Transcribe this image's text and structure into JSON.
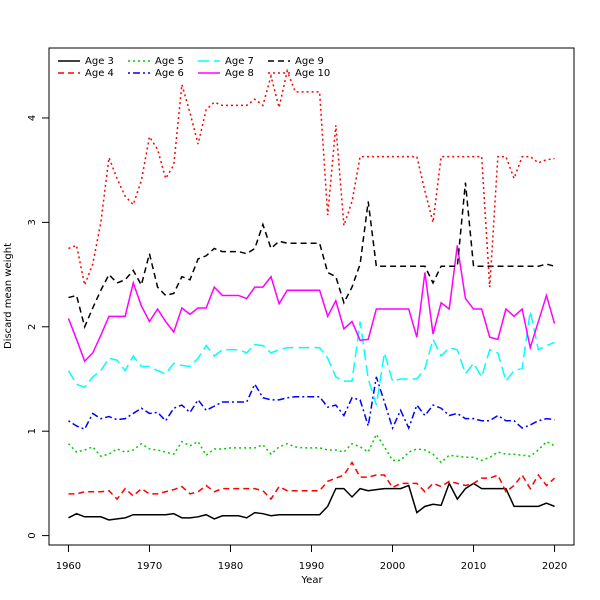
{
  "chart_data": {
    "type": "line",
    "xlabel": "Year",
    "ylabel": "Discard mean weight",
    "x": [
      1960,
      1961,
      1962,
      1963,
      1964,
      1965,
      1966,
      1967,
      1968,
      1969,
      1970,
      1971,
      1972,
      1973,
      1974,
      1975,
      1976,
      1977,
      1978,
      1979,
      1980,
      1981,
      1982,
      1983,
      1984,
      1985,
      1986,
      1987,
      1988,
      1989,
      1990,
      1991,
      1992,
      1993,
      1994,
      1995,
      1996,
      1997,
      1998,
      1999,
      2000,
      2001,
      2002,
      2003,
      2004,
      2005,
      2006,
      2007,
      2008,
      2009,
      2010,
      2011,
      2012,
      2013,
      2014,
      2015,
      2016,
      2017,
      2018,
      2019,
      2020
    ],
    "xlim": [
      1957.6,
      2022.4
    ],
    "xticks": [
      1960,
      1970,
      1980,
      1990,
      2000,
      2010,
      2020
    ],
    "ylim": [
      -0.09,
      4.67
    ],
    "yticks": [
      0,
      1,
      2,
      3,
      4
    ],
    "legend": "top-left",
    "series": [
      {
        "name": "Age 3",
        "color": "#000000",
        "dash": "none",
        "values": [
          0.17,
          0.21,
          0.18,
          0.18,
          0.18,
          0.15,
          0.16,
          0.17,
          0.2,
          0.2,
          0.2,
          0.2,
          0.2,
          0.21,
          0.17,
          0.17,
          0.18,
          0.2,
          0.16,
          0.19,
          0.19,
          0.19,
          0.17,
          0.22,
          0.21,
          0.19,
          0.2,
          0.2,
          0.2,
          0.2,
          0.2,
          0.2,
          0.28,
          0.45,
          0.45,
          0.37,
          0.45,
          0.43,
          0.44,
          0.45,
          0.45,
          0.45,
          0.48,
          0.22,
          0.28,
          0.3,
          0.29,
          0.5,
          0.35,
          0.45,
          0.5,
          0.45,
          0.45,
          0.45,
          0.45,
          0.28,
          0.28,
          0.28,
          0.28,
          0.31,
          0.28
        ]
      },
      {
        "name": "Age 4",
        "color": "#ff0000",
        "dash": "6,4",
        "values": [
          0.4,
          0.4,
          0.42,
          0.42,
          0.42,
          0.43,
          0.35,
          0.45,
          0.38,
          0.45,
          0.4,
          0.4,
          0.42,
          0.44,
          0.47,
          0.4,
          0.42,
          0.48,
          0.42,
          0.45,
          0.45,
          0.45,
          0.45,
          0.45,
          0.43,
          0.35,
          0.47,
          0.43,
          0.43,
          0.43,
          0.43,
          0.43,
          0.52,
          0.55,
          0.58,
          0.7,
          0.56,
          0.56,
          0.58,
          0.58,
          0.46,
          0.5,
          0.5,
          0.5,
          0.42,
          0.5,
          0.47,
          0.52,
          0.5,
          0.48,
          0.5,
          0.55,
          0.55,
          0.58,
          0.42,
          0.48,
          0.58,
          0.45,
          0.58,
          0.48,
          0.55
        ]
      },
      {
        "name": "Age 5",
        "color": "#00cd00",
        "dash": "2,3",
        "values": [
          0.88,
          0.8,
          0.82,
          0.85,
          0.76,
          0.78,
          0.83,
          0.8,
          0.82,
          0.88,
          0.83,
          0.82,
          0.8,
          0.78,
          0.9,
          0.86,
          0.9,
          0.77,
          0.83,
          0.83,
          0.84,
          0.84,
          0.84,
          0.84,
          0.87,
          0.78,
          0.85,
          0.88,
          0.85,
          0.84,
          0.84,
          0.84,
          0.82,
          0.82,
          0.8,
          0.88,
          0.85,
          0.8,
          0.97,
          0.85,
          0.72,
          0.72,
          0.8,
          0.83,
          0.82,
          0.78,
          0.7,
          0.77,
          0.76,
          0.75,
          0.75,
          0.72,
          0.75,
          0.8,
          0.78,
          0.78,
          0.77,
          0.76,
          0.82,
          0.9,
          0.86
        ]
      },
      {
        "name": "Age 6",
        "color": "#0000ff",
        "dash": "2,3,7,3",
        "values": [
          1.1,
          1.05,
          1.02,
          1.17,
          1.12,
          1.14,
          1.11,
          1.12,
          1.17,
          1.22,
          1.17,
          1.18,
          1.1,
          1.22,
          1.25,
          1.18,
          1.3,
          1.2,
          1.24,
          1.28,
          1.28,
          1.28,
          1.28,
          1.45,
          1.32,
          1.3,
          1.3,
          1.32,
          1.33,
          1.33,
          1.33,
          1.33,
          1.23,
          1.25,
          1.15,
          1.32,
          1.3,
          1.05,
          1.52,
          1.28,
          1.03,
          1.2,
          1.03,
          1.25,
          1.15,
          1.25,
          1.22,
          1.15,
          1.17,
          1.12,
          1.12,
          1.1,
          1.1,
          1.15,
          1.1,
          1.1,
          1.03,
          1.06,
          1.1,
          1.12,
          1.11
        ]
      },
      {
        "name": "Age 7",
        "color": "#00ffff",
        "dash": "11,5",
        "values": [
          1.58,
          1.45,
          1.42,
          1.52,
          1.58,
          1.7,
          1.68,
          1.58,
          1.72,
          1.62,
          1.62,
          1.58,
          1.55,
          1.65,
          1.63,
          1.62,
          1.7,
          1.82,
          1.72,
          1.78,
          1.78,
          1.78,
          1.75,
          1.83,
          1.82,
          1.75,
          1.78,
          1.8,
          1.8,
          1.8,
          1.8,
          1.8,
          1.7,
          1.52,
          1.48,
          1.48,
          2.05,
          1.5,
          1.25,
          1.75,
          1.48,
          1.5,
          1.5,
          1.5,
          1.6,
          1.88,
          1.72,
          1.8,
          1.78,
          1.55,
          1.65,
          1.52,
          1.78,
          1.75,
          1.48,
          1.58,
          1.6,
          2.15,
          1.78,
          1.82,
          1.85
        ]
      },
      {
        "name": "Age 8",
        "color": "#ff00ff",
        "dash": "none",
        "values": [
          2.08,
          1.88,
          1.67,
          1.75,
          1.92,
          2.1,
          2.1,
          2.1,
          2.42,
          2.2,
          2.05,
          2.17,
          2.05,
          1.95,
          2.18,
          2.12,
          2.18,
          2.18,
          2.38,
          2.3,
          2.3,
          2.3,
          2.27,
          2.38,
          2.38,
          2.48,
          2.22,
          2.35,
          2.35,
          2.35,
          2.35,
          2.35,
          2.1,
          2.25,
          1.98,
          2.05,
          1.87,
          1.88,
          2.17,
          2.17,
          2.17,
          2.17,
          2.17,
          1.9,
          2.52,
          1.93,
          2.23,
          2.17,
          2.78,
          2.27,
          2.17,
          2.17,
          1.9,
          1.88,
          2.17,
          2.1,
          2.17,
          1.8,
          2.05,
          2.3,
          2.03
        ]
      },
      {
        "name": "Age 9",
        "color": "#000000",
        "dash": "6,4",
        "values": [
          2.28,
          2.3,
          2.0,
          2.18,
          2.35,
          2.5,
          2.42,
          2.45,
          2.54,
          2.4,
          2.7,
          2.38,
          2.3,
          2.32,
          2.48,
          2.45,
          2.65,
          2.68,
          2.75,
          2.72,
          2.72,
          2.72,
          2.7,
          2.75,
          2.98,
          2.75,
          2.82,
          2.8,
          2.8,
          2.8,
          2.8,
          2.8,
          2.52,
          2.48,
          2.23,
          2.38,
          2.6,
          3.2,
          2.58,
          2.58,
          2.58,
          2.58,
          2.58,
          2.58,
          2.58,
          2.42,
          2.58,
          2.58,
          2.58,
          3.38,
          2.58,
          2.58,
          2.58,
          2.58,
          2.58,
          2.58,
          2.58,
          2.58,
          2.58,
          2.6,
          2.58
        ]
      },
      {
        "name": "Age 10",
        "color": "#ff0000",
        "dash": "2,3",
        "values": [
          2.75,
          2.78,
          2.4,
          2.6,
          3.0,
          3.62,
          3.42,
          3.25,
          3.17,
          3.4,
          3.82,
          3.7,
          3.42,
          3.55,
          4.32,
          4.05,
          3.75,
          4.08,
          4.15,
          4.12,
          4.12,
          4.12,
          4.12,
          4.18,
          4.12,
          4.4,
          4.1,
          4.45,
          4.25,
          4.25,
          4.25,
          4.25,
          3.07,
          3.93,
          2.97,
          3.2,
          3.63,
          3.63,
          3.63,
          3.63,
          3.63,
          3.63,
          3.63,
          3.63,
          3.3,
          3.0,
          3.63,
          3.63,
          3.63,
          3.63,
          3.63,
          3.63,
          2.38,
          3.63,
          3.63,
          3.42,
          3.63,
          3.63,
          3.57,
          3.6,
          3.61
        ]
      }
    ]
  }
}
